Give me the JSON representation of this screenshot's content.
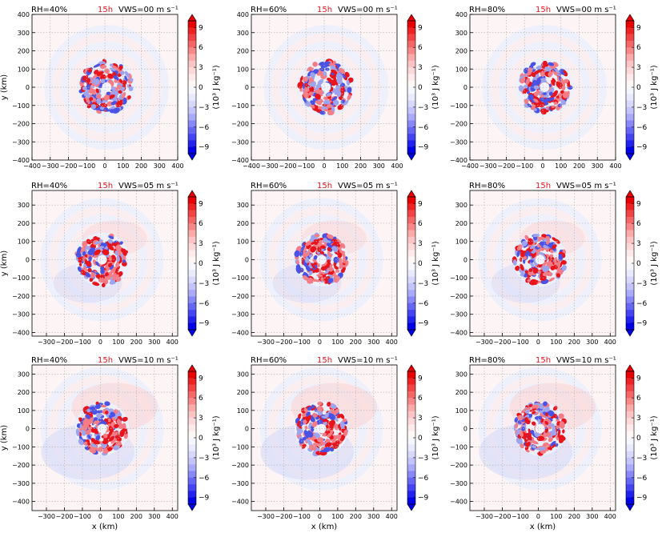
{
  "colors": {
    "hour": "#e8101a",
    "grid": "#b8b8b8"
  },
  "labels": {
    "xlabel": "x (km)",
    "ylabel": "y (km)",
    "cbar_label": "(10³ J kg⁻¹)"
  },
  "colorbar": {
    "ticks": [
      "9",
      "6",
      "3",
      "0",
      "−3",
      "−6",
      "−9"
    ],
    "range": [
      -10,
      10
    ]
  },
  "chart_data": [
    {
      "type": "heatmap",
      "rh": "RH=40%",
      "hour": "15h",
      "vws": "VWS=00 m s⁻¹",
      "xlim": [
        -400,
        400
      ],
      "ylim": [
        -400,
        400
      ],
      "xticks": [
        -400,
        -300,
        -200,
        -100,
        0,
        100,
        200,
        300,
        400
      ],
      "yticks": [
        -400,
        -300,
        -200,
        -100,
        0,
        100,
        200,
        300,
        400
      ]
    },
    {
      "type": "heatmap",
      "rh": "RH=60%",
      "hour": "15h",
      "vws": "VWS=00 m s⁻¹",
      "xlim": [
        -400,
        400
      ],
      "ylim": [
        -400,
        400
      ],
      "xticks": [
        -400,
        -300,
        -200,
        -100,
        0,
        100,
        200,
        300,
        400
      ],
      "yticks": [
        -400,
        -300,
        -200,
        -100,
        0,
        100,
        200,
        300,
        400
      ]
    },
    {
      "type": "heatmap",
      "rh": "RH=80%",
      "hour": "15h",
      "vws": "VWS=00 m s⁻¹",
      "xlim": [
        -400,
        400
      ],
      "ylim": [
        -400,
        400
      ],
      "xticks": [
        -400,
        -300,
        -200,
        -100,
        0,
        100,
        200,
        300,
        400
      ],
      "yticks": [
        -400,
        -300,
        -200,
        -100,
        0,
        100,
        200,
        300,
        400
      ]
    },
    {
      "type": "heatmap",
      "rh": "RH=40%",
      "hour": "15h",
      "vws": "VWS=05 m s⁻¹",
      "xlim": [
        -380,
        430
      ],
      "ylim": [
        -420,
        380
      ],
      "xticks": [
        -300,
        -200,
        -100,
        0,
        100,
        200,
        300,
        400
      ],
      "yticks": [
        -400,
        -300,
        -200,
        -100,
        0,
        100,
        200,
        300
      ]
    },
    {
      "type": "heatmap",
      "rh": "RH=60%",
      "hour": "15h",
      "vws": "VWS=05 m s⁻¹",
      "xlim": [
        -380,
        430
      ],
      "ylim": [
        -420,
        380
      ],
      "xticks": [
        -300,
        -200,
        -100,
        0,
        100,
        200,
        300,
        400
      ],
      "yticks": [
        -400,
        -300,
        -200,
        -100,
        0,
        100,
        200,
        300
      ]
    },
    {
      "type": "heatmap",
      "rh": "RH=80%",
      "hour": "15h",
      "vws": "VWS=05 m s⁻¹",
      "xlim": [
        -380,
        430
      ],
      "ylim": [
        -420,
        380
      ],
      "xticks": [
        -300,
        -200,
        -100,
        0,
        100,
        200,
        300,
        400
      ],
      "yticks": [
        -400,
        -300,
        -200,
        -100,
        0,
        100,
        200,
        300
      ]
    },
    {
      "type": "heatmap",
      "rh": "RH=40%",
      "hour": "15h",
      "vws": "VWS=10 m s⁻¹",
      "xlim": [
        -380,
        430
      ],
      "ylim": [
        -450,
        350
      ],
      "xticks": [
        -300,
        -200,
        -100,
        0,
        100,
        200,
        300,
        400
      ],
      "yticks": [
        -400,
        -300,
        -200,
        -100,
        0,
        100,
        200,
        300
      ]
    },
    {
      "type": "heatmap",
      "rh": "RH=60%",
      "hour": "15h",
      "vws": "VWS=10 m s⁻¹",
      "xlim": [
        -380,
        430
      ],
      "ylim": [
        -450,
        350
      ],
      "xticks": [
        -300,
        -200,
        -100,
        0,
        100,
        200,
        300,
        400
      ],
      "yticks": [
        -400,
        -300,
        -200,
        -100,
        0,
        100,
        200,
        300
      ]
    },
    {
      "type": "heatmap",
      "rh": "RH=80%",
      "hour": "15h",
      "vws": "VWS=10 m s⁻¹",
      "xlim": [
        -380,
        430
      ],
      "ylim": [
        -450,
        350
      ],
      "xticks": [
        -300,
        -200,
        -100,
        0,
        100,
        200,
        300,
        400
      ],
      "yticks": [
        -400,
        -300,
        -200,
        -100,
        0,
        100,
        200,
        300
      ]
    }
  ]
}
